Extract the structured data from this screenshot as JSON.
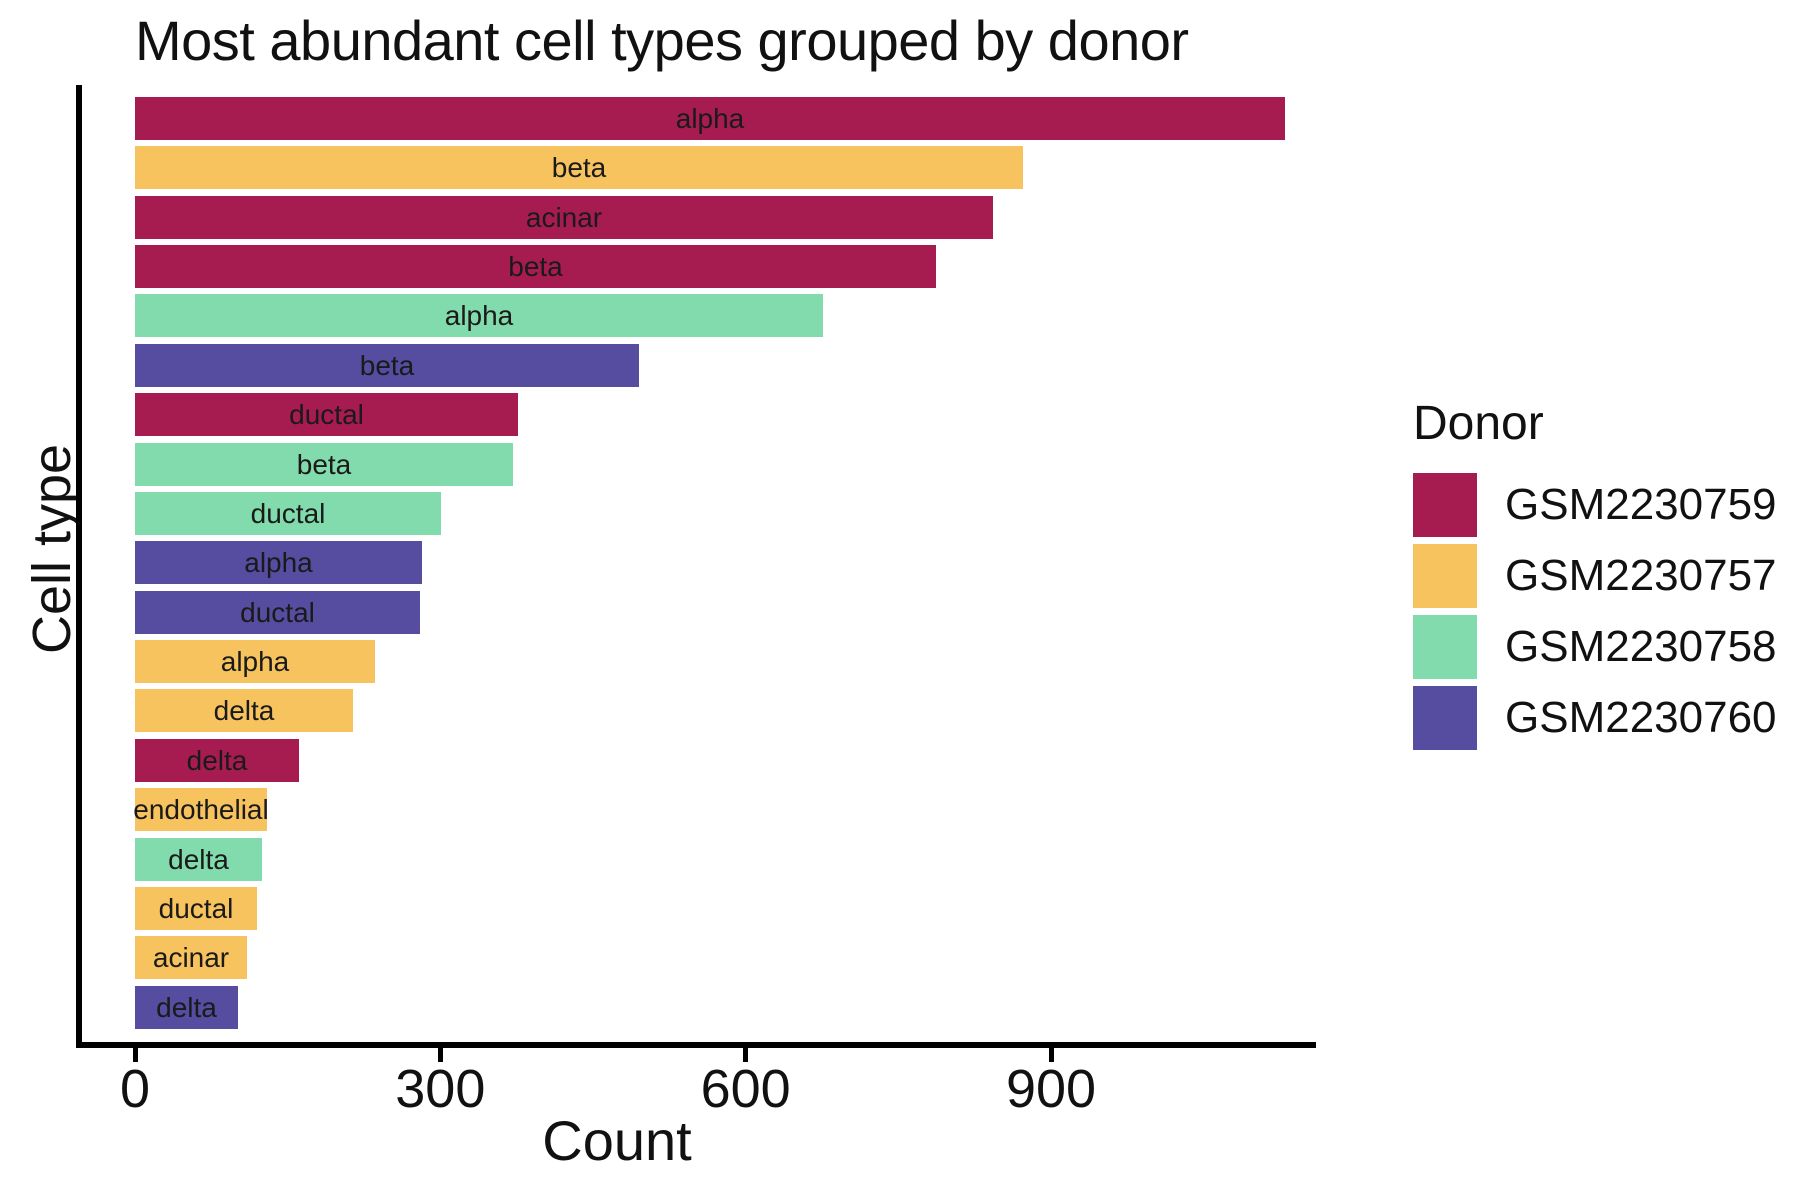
{
  "chart_data": {
    "type": "bar",
    "orientation": "horizontal",
    "title": "Most abundant cell types grouped by donor",
    "xlabel": "Count",
    "ylabel": "Cell type",
    "xlim": [
      0,
      1150
    ],
    "xticks": [
      0,
      300,
      600,
      900
    ],
    "grid": false,
    "legend": {
      "title": "Donor",
      "position": "right"
    },
    "donors": [
      {
        "id": "GSM2230759",
        "color": "#a71c50"
      },
      {
        "id": "GSM2230757",
        "color": "#f7c35f"
      },
      {
        "id": "GSM2230758",
        "color": "#81dbac"
      },
      {
        "id": "GSM2230760",
        "color": "#564ca0"
      }
    ],
    "bars": [
      {
        "cell_type": "alpha",
        "donor": "GSM2230759",
        "count": 1130
      },
      {
        "cell_type": "beta",
        "donor": "GSM2230757",
        "count": 872
      },
      {
        "cell_type": "acinar",
        "donor": "GSM2230759",
        "count": 843
      },
      {
        "cell_type": "beta",
        "donor": "GSM2230759",
        "count": 787
      },
      {
        "cell_type": "alpha",
        "donor": "GSM2230758",
        "count": 676
      },
      {
        "cell_type": "beta",
        "donor": "GSM2230760",
        "count": 495
      },
      {
        "cell_type": "ductal",
        "donor": "GSM2230759",
        "count": 376
      },
      {
        "cell_type": "beta",
        "donor": "GSM2230758",
        "count": 371
      },
      {
        "cell_type": "ductal",
        "donor": "GSM2230758",
        "count": 301
      },
      {
        "cell_type": "alpha",
        "donor": "GSM2230760",
        "count": 282
      },
      {
        "cell_type": "ductal",
        "donor": "GSM2230760",
        "count": 280
      },
      {
        "cell_type": "alpha",
        "donor": "GSM2230757",
        "count": 236
      },
      {
        "cell_type": "delta",
        "donor": "GSM2230757",
        "count": 214
      },
      {
        "cell_type": "delta",
        "donor": "GSM2230759",
        "count": 161
      },
      {
        "cell_type": "endothelial",
        "donor": "GSM2230757",
        "count": 130
      },
      {
        "cell_type": "delta",
        "donor": "GSM2230758",
        "count": 125
      },
      {
        "cell_type": "ductal",
        "donor": "GSM2230757",
        "count": 120
      },
      {
        "cell_type": "acinar",
        "donor": "GSM2230757",
        "count": 110
      },
      {
        "cell_type": "delta",
        "donor": "GSM2230760",
        "count": 101
      }
    ]
  }
}
